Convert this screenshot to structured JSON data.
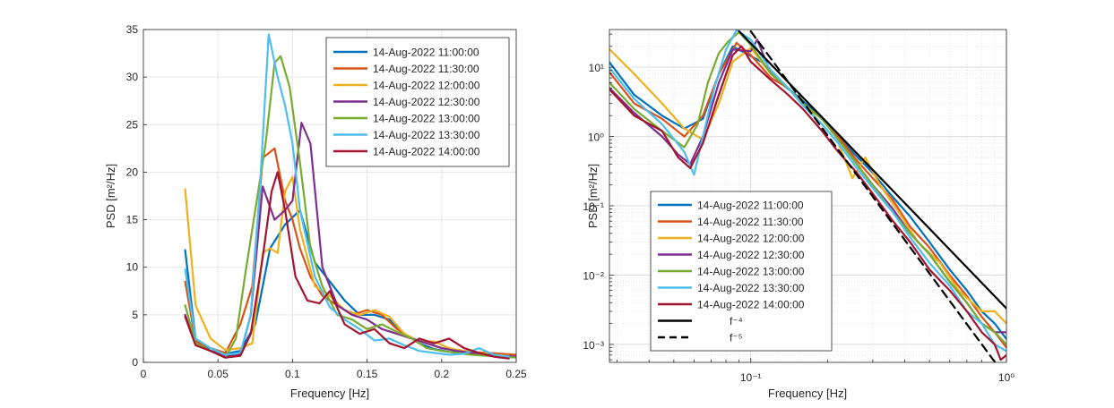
{
  "chart_data": [
    {
      "type": "line",
      "x_scale": "linear",
      "y_scale": "linear",
      "xlabel": "Frequency [Hz]",
      "ylabel": "PSD [m²/Hz]",
      "xlim": [
        0,
        0.25
      ],
      "ylim": [
        0,
        35
      ],
      "xticks": [
        0,
        0.05,
        0.1,
        0.15,
        0.2,
        0.25
      ],
      "xtick_labels": [
        "0",
        "0.05",
        "0.1",
        "0.15",
        "0.2",
        "0.25"
      ],
      "yticks": [
        0,
        5,
        10,
        15,
        20,
        25,
        30,
        35
      ],
      "ytick_labels": [
        "0",
        "5",
        "10",
        "15",
        "20",
        "25",
        "30",
        "35"
      ],
      "grid": true,
      "legend_position": "top-right",
      "series": [
        {
          "name": "14-Aug-2022 11:00:00",
          "color": "#0072BD",
          "x": [
            0.028,
            0.035,
            0.045,
            0.055,
            0.065,
            0.075,
            0.085,
            0.095,
            0.105,
            0.115,
            0.125,
            0.135,
            0.145,
            0.155,
            0.165,
            0.175,
            0.185,
            0.195,
            0.205,
            0.215,
            0.225,
            0.235,
            0.245
          ],
          "values": [
            11.8,
            2.5,
            1.2,
            0.9,
            1.2,
            4,
            12,
            14.5,
            16,
            10.5,
            8.5,
            6.5,
            5,
            5,
            4.5,
            3,
            2,
            1.4,
            1.1,
            1,
            0.9,
            0.8,
            0.7
          ]
        },
        {
          "name": "14-Aug-2022 11:30:00",
          "color": "#D95319",
          "x": [
            0.028,
            0.035,
            0.045,
            0.055,
            0.065,
            0.073,
            0.08,
            0.088,
            0.095,
            0.1,
            0.105,
            0.112,
            0.12,
            0.13,
            0.14,
            0.15,
            0.16,
            0.17,
            0.18,
            0.19,
            0.2,
            0.21,
            0.22,
            0.23,
            0.24,
            0.25
          ],
          "values": [
            8.5,
            2.2,
            1.5,
            1,
            4,
            8,
            21.5,
            22.5,
            17,
            15,
            12,
            9,
            7,
            6,
            5,
            5.5,
            5,
            3.5,
            2.5,
            2,
            1.5,
            1.3,
            1.1,
            1,
            0.9,
            0.8
          ]
        },
        {
          "name": "14-Aug-2022 12:00:00",
          "color": "#EDB120",
          "x": [
            0.028,
            0.035,
            0.045,
            0.055,
            0.065,
            0.073,
            0.08,
            0.085,
            0.09,
            0.095,
            0.1,
            0.105,
            0.115,
            0.125,
            0.135,
            0.145,
            0.155,
            0.165,
            0.175,
            0.185,
            0.195,
            0.205,
            0.215,
            0.225,
            0.235,
            0.245
          ],
          "values": [
            18.2,
            6,
            2.5,
            1.3,
            1.5,
            2,
            11.5,
            12,
            11.5,
            18,
            19.5,
            14,
            8,
            7,
            5.5,
            5,
            5.5,
            4.8,
            3,
            2.2,
            2.2,
            1.5,
            1.2,
            1,
            0.8,
            0.7
          ]
        },
        {
          "name": "14-Aug-2022 12:30:00",
          "color": "#7E2F8E",
          "x": [
            0.028,
            0.035,
            0.045,
            0.055,
            0.065,
            0.072,
            0.08,
            0.088,
            0.095,
            0.1,
            0.106,
            0.112,
            0.12,
            0.13,
            0.14,
            0.15,
            0.16,
            0.17,
            0.18,
            0.19,
            0.2,
            0.21,
            0.22,
            0.23,
            0.24,
            0.25
          ],
          "values": [
            5,
            2,
            1.2,
            0.6,
            0.8,
            5,
            18.5,
            15,
            16,
            17,
            25.2,
            23,
            10,
            6,
            5,
            4.5,
            3.5,
            3,
            2.5,
            2,
            1.5,
            1.2,
            1,
            0.8,
            0.7,
            0.6
          ]
        },
        {
          "name": "14-Aug-2022 13:00:00",
          "color": "#77AC30",
          "x": [
            0.028,
            0.035,
            0.045,
            0.055,
            0.062,
            0.068,
            0.075,
            0.082,
            0.088,
            0.092,
            0.098,
            0.105,
            0.112,
            0.12,
            0.13,
            0.14,
            0.15,
            0.16,
            0.17,
            0.18,
            0.19,
            0.2,
            0.21,
            0.22,
            0.23,
            0.24,
            0.25
          ],
          "values": [
            6,
            2,
            1.2,
            0.5,
            2.5,
            9,
            16,
            23,
            31.5,
            32.2,
            29,
            21,
            12,
            8,
            5,
            4.5,
            3.5,
            4,
            3.2,
            2.5,
            1.5,
            1.2,
            1,
            0.8,
            0.7,
            0.6,
            0.5
          ]
        },
        {
          "name": "14-Aug-2022 13:30:00",
          "color": "#4DBEEE",
          "x": [
            0.028,
            0.035,
            0.045,
            0.055,
            0.065,
            0.072,
            0.078,
            0.084,
            0.09,
            0.095,
            0.1,
            0.105,
            0.115,
            0.125,
            0.135,
            0.145,
            0.155,
            0.165,
            0.175,
            0.185,
            0.195,
            0.205,
            0.215,
            0.225,
            0.235,
            0.245
          ],
          "values": [
            9.8,
            2.5,
            1.5,
            0.8,
            1,
            5,
            18,
            34.5,
            30,
            27,
            23,
            16,
            9,
            5.8,
            4.5,
            3.5,
            2.3,
            2.5,
            1.8,
            1.2,
            1,
            0.8,
            0.9,
            1.5,
            0.8,
            0.6
          ]
        },
        {
          "name": "14-Aug-2022 14:00:00",
          "color": "#A2142F",
          "x": [
            0.028,
            0.035,
            0.045,
            0.055,
            0.065,
            0.072,
            0.08,
            0.086,
            0.09,
            0.095,
            0.102,
            0.11,
            0.118,
            0.125,
            0.135,
            0.145,
            0.155,
            0.165,
            0.175,
            0.185,
            0.195,
            0.205,
            0.215,
            0.225,
            0.235,
            0.245
          ],
          "values": [
            4.8,
            1.8,
            1.2,
            0.5,
            0.7,
            3,
            11,
            18,
            20,
            16,
            9,
            6.5,
            6.2,
            7.5,
            4,
            3,
            3.5,
            2,
            1.5,
            2.5,
            2,
            2.5,
            1.5,
            1,
            0.6,
            0.4
          ]
        }
      ]
    },
    {
      "type": "line",
      "x_scale": "log",
      "y_scale": "log",
      "xlabel": "Frequency [Hz]",
      "ylabel": "PSD [m²/Hz]",
      "xlim": [
        0.028,
        1.0
      ],
      "ylim": [
        0.00055,
        35
      ],
      "xtick_labels": [
        "10⁻¹",
        "10⁰"
      ],
      "ytick_labels": [
        "10⁻³",
        "10⁻²",
        "10⁻¹",
        "10⁰",
        "10¹"
      ],
      "grid": true,
      "legend_position": "bottom-left",
      "series": [
        {
          "name": "14-Aug-2022 11:00:00",
          "color": "#0072BD",
          "x": [
            0.028,
            0.035,
            0.045,
            0.055,
            0.065,
            0.075,
            0.085,
            0.095,
            0.11,
            0.13,
            0.15,
            0.18,
            0.21,
            0.25,
            0.3,
            0.35,
            0.42,
            0.5,
            0.6,
            0.7,
            0.8,
            0.9,
            1.0
          ],
          "values": [
            11.8,
            4,
            2,
            1.3,
            1.8,
            8,
            20,
            16,
            12,
            6,
            4,
            2.2,
            1.2,
            0.6,
            0.3,
            0.15,
            0.07,
            0.03,
            0.012,
            0.006,
            0.003,
            0.002,
            0.0012
          ]
        },
        {
          "name": "14-Aug-2022 11:30:00",
          "color": "#D95319",
          "x": [
            0.028,
            0.035,
            0.045,
            0.055,
            0.065,
            0.075,
            0.088,
            0.1,
            0.12,
            0.14,
            0.16,
            0.19,
            0.22,
            0.26,
            0.3,
            0.36,
            0.42,
            0.5,
            0.6,
            0.7,
            0.8,
            0.9,
            1.0
          ],
          "values": [
            8.5,
            3,
            1.8,
            1,
            2,
            8,
            22.5,
            15,
            7,
            5,
            3,
            1.8,
            1,
            0.45,
            0.25,
            0.12,
            0.05,
            0.025,
            0.01,
            0.005,
            0.0025,
            0.0015,
            0.0009
          ]
        },
        {
          "name": "14-Aug-2022 12:00:00",
          "color": "#EDB120",
          "x": [
            0.028,
            0.035,
            0.045,
            0.055,
            0.065,
            0.075,
            0.085,
            0.1,
            0.12,
            0.14,
            0.16,
            0.19,
            0.22,
            0.25,
            0.28,
            0.32,
            0.38,
            0.45,
            0.55,
            0.65,
            0.8,
            0.9,
            1.0
          ],
          "values": [
            18.2,
            8,
            3,
            1.3,
            0.9,
            3,
            12,
            19,
            8,
            5,
            3,
            1.5,
            0.8,
            0.25,
            0.5,
            0.2,
            0.08,
            0.03,
            0.015,
            0.006,
            0.003,
            0.003,
            0.002
          ]
        },
        {
          "name": "14-Aug-2022 12:30:00",
          "color": "#7E2F8E",
          "x": [
            0.028,
            0.035,
            0.045,
            0.052,
            0.058,
            0.065,
            0.075,
            0.085,
            0.1,
            0.106,
            0.12,
            0.14,
            0.16,
            0.19,
            0.22,
            0.26,
            0.3,
            0.36,
            0.42,
            0.5,
            0.6,
            0.7,
            0.8,
            0.9,
            1.0
          ],
          "values": [
            5,
            2.2,
            1,
            0.55,
            0.4,
            1,
            6,
            18,
            17,
            25,
            8,
            5,
            3,
            1.8,
            0.9,
            0.4,
            0.2,
            0.09,
            0.04,
            0.02,
            0.008,
            0.004,
            0.002,
            0.0015,
            0.0015
          ]
        },
        {
          "name": "14-Aug-2022 13:00:00",
          "color": "#77AC30",
          "x": [
            0.028,
            0.035,
            0.045,
            0.055,
            0.062,
            0.068,
            0.075,
            0.082,
            0.09,
            0.1,
            0.12,
            0.14,
            0.16,
            0.19,
            0.22,
            0.26,
            0.3,
            0.36,
            0.42,
            0.5,
            0.6,
            0.7,
            0.8,
            0.9,
            1.0
          ],
          "values": [
            6,
            2.5,
            1.2,
            0.7,
            1.5,
            6,
            16,
            24,
            32,
            21,
            8,
            5,
            3,
            1.8,
            0.9,
            0.4,
            0.2,
            0.08,
            0.04,
            0.02,
            0.008,
            0.004,
            0.002,
            0.0015,
            0.001
          ]
        },
        {
          "name": "14-Aug-2022 13:30:00",
          "color": "#4DBEEE",
          "x": [
            0.028,
            0.035,
            0.045,
            0.055,
            0.06,
            0.065,
            0.072,
            0.08,
            0.088,
            0.1,
            0.12,
            0.14,
            0.16,
            0.19,
            0.22,
            0.26,
            0.3,
            0.36,
            0.42,
            0.5,
            0.6,
            0.7,
            0.8,
            0.9,
            1.0
          ],
          "values": [
            9.8,
            3.5,
            1.5,
            0.6,
            0.28,
            1,
            5,
            18,
            34.5,
            25,
            9,
            5,
            2.8,
            1.5,
            0.8,
            0.35,
            0.18,
            0.08,
            0.035,
            0.015,
            0.007,
            0.003,
            0.002,
            0.001,
            0.0008
          ]
        },
        {
          "name": "14-Aug-2022 14:00:00",
          "color": "#A2142F",
          "x": [
            0.028,
            0.035,
            0.045,
            0.052,
            0.058,
            0.065,
            0.075,
            0.085,
            0.092,
            0.1,
            0.12,
            0.14,
            0.16,
            0.19,
            0.22,
            0.26,
            0.3,
            0.36,
            0.42,
            0.5,
            0.6,
            0.7,
            0.8,
            0.9,
            0.95,
            1.0
          ],
          "values": [
            4.8,
            2,
            1.2,
            0.5,
            0.35,
            0.8,
            4,
            15,
            20,
            12,
            6.5,
            4,
            2.5,
            1.2,
            0.6,
            0.3,
            0.15,
            0.06,
            0.03,
            0.012,
            0.006,
            0.003,
            0.0015,
            0.001,
            0.0006,
            0.0007
          ]
        },
        {
          "name": "f⁻⁴",
          "color": "#000000",
          "dash": "solid",
          "x": [
            0.09,
            1.0
          ],
          "values": [
            33,
            0.0033
          ]
        },
        {
          "name": "f⁻⁵",
          "color": "#000000",
          "dash": "dashed",
          "x": [
            0.1,
            1.0
          ],
          "values": [
            33,
            0.00033
          ]
        }
      ]
    }
  ]
}
